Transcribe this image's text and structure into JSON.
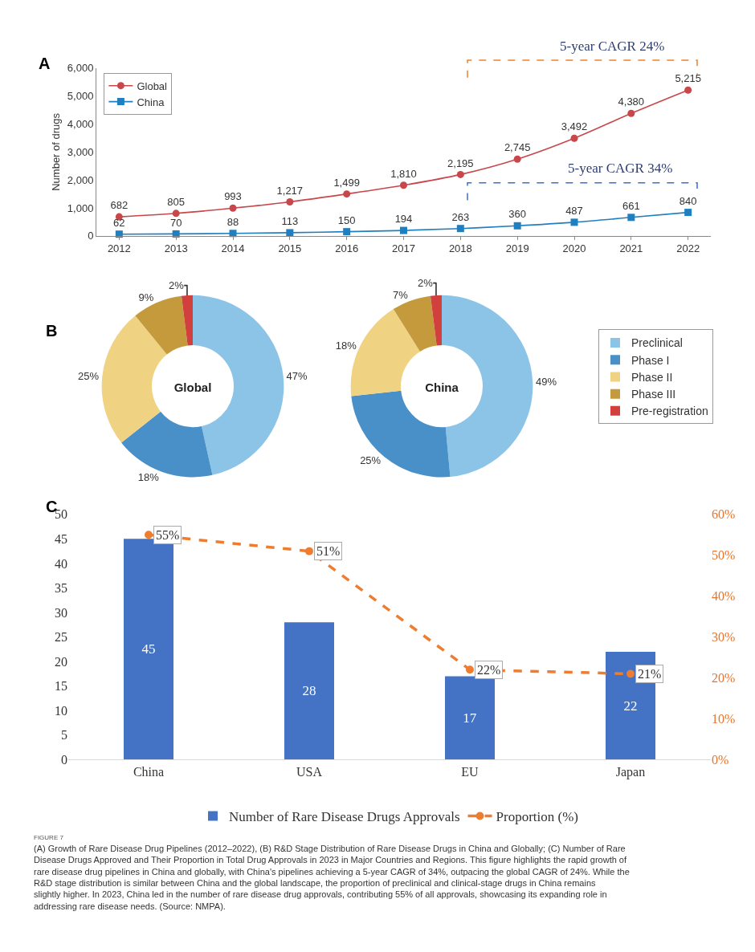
{
  "chart_data": [
    {
      "type": "line",
      "ylabel": "Number of drugs",
      "annotations": [
        "A",
        "5-year CAGR 24%",
        "5-year CAGR 34%"
      ],
      "categories": [
        "2012",
        "2013",
        "2014",
        "2015",
        "2016",
        "2017",
        "2018",
        "2019",
        "2020",
        "2021",
        "2022"
      ],
      "series": [
        {
          "name": "Global",
          "color": "#c8474a",
          "marker": "circle",
          "values": [
            682,
            805,
            993,
            1217,
            1499,
            1810,
            2195,
            2745,
            3492,
            4380,
            5215
          ],
          "value_labels": [
            "682",
            "805",
            "993",
            "1,217",
            "1,499",
            "1,810",
            "2,195",
            "2,745",
            "3,492",
            "4,380",
            "5,215"
          ]
        },
        {
          "name": "China",
          "color": "#1f7fbf",
          "marker": "square",
          "values": [
            62,
            70,
            88,
            113,
            150,
            194,
            263,
            360,
            487,
            661,
            840
          ],
          "value_labels": [
            "62",
            "70",
            "88",
            "113",
            "150",
            "194",
            "263",
            "360",
            "487",
            "661",
            "840"
          ]
        }
      ],
      "ylim": [
        0,
        6000
      ],
      "yticks": [
        0,
        {
          "value": 1000,
          "label": "1,000"
        },
        {
          "value": 2000,
          "label": "2,000"
        },
        {
          "value": 3000,
          "label": "3,000"
        },
        {
          "value": 4000,
          "label": "4,000"
        },
        {
          "value": 5000,
          "label": "5,000"
        },
        {
          "value": 6000,
          "label": "6,000"
        }
      ],
      "legend": "top left",
      "line_style": "solid"
    },
    {
      "type": "donut",
      "title": "Global",
      "annotations": [
        "B"
      ],
      "categories": [
        "Preclinical",
        "Phase I",
        "Phase II",
        "Phase III",
        "Pre-registration"
      ],
      "values": [
        47,
        18,
        25,
        9,
        2
      ],
      "value_labels": [
        "47%",
        "18%",
        "25%",
        "9%",
        "2%"
      ],
      "colors": [
        "#8cc4e8",
        "#4a90c8",
        "#f0d283",
        "#c49a3c",
        "#d2403e"
      ],
      "legend": "right"
    },
    {
      "type": "donut",
      "title": "China",
      "categories": [
        null,
        null,
        null,
        null,
        null
      ],
      "values": [
        49,
        25,
        18,
        7,
        2
      ],
      "value_labels": [
        "49%",
        "25%",
        "18%",
        "7%",
        "2%"
      ],
      "colors": [
        "#8cc4e8",
        "#4a90c8",
        "#f0d283",
        "#c49a3c",
        "#d2403e"
      ]
    },
    {
      "type": "bar",
      "annotations": [
        "C",
        "FIGURE 7",
        "(A) Growth of Rare Disease Drug Pipelines (2012–2022), (B) R&D Stage Distribution of Rare Disease Drugs in China and Globally; (C) Number of Rare Disease Drugs Approved and Their Proportion in Total Drug Approvals in 2023 in Major Countries and Regions. This figure highlights the rapid growth of rare disease drug pipelines in China and globally, with China's pipelines achieving a 5-year CAGR of 34%, outpacing the global CAGR of 24%. While the R&D stage distribution is similar between China and the global landscape, the proportion of preclinical and clinical-stage drugs in China remains slightly higher. In 2023, China led in the number of rare disease drug approvals, contributing 55% of all approvals, showcasing its expanding role in addressing rare disease needs. (Source: NMPA)."
      ],
      "categories": [
        "China",
        "USA",
        "EU",
        "Japan"
      ],
      "series": [
        {
          "name": "Number of Rare Disease Drugs Approvals",
          "type": "bar",
          "color": "#4472c4",
          "values": [
            45,
            28,
            17,
            22
          ],
          "value_labels": [
            "45",
            "28",
            "17",
            "22"
          ]
        },
        {
          "name": "Proportion (%)",
          "type": "line",
          "axis": "y2",
          "color": "#ed7d31",
          "marker": "circle",
          "line_style": "dashed",
          "values": [
            55,
            51,
            22,
            21
          ],
          "value_labels": [
            "55%",
            "51%",
            "22%",
            "21%"
          ]
        }
      ],
      "ylim": [
        0,
        50
      ],
      "yticks": [
        0,
        5,
        10,
        15,
        20,
        25,
        30,
        35,
        40,
        45,
        50
      ],
      "y2lim": [
        0,
        60
      ],
      "y2ticks": [
        {
          "value": 0,
          "label": "0%"
        },
        {
          "value": 10,
          "label": "10%"
        },
        {
          "value": 20,
          "label": "20%"
        },
        {
          "value": 30,
          "label": "30%"
        },
        {
          "value": 40,
          "label": "40%"
        },
        {
          "value": 50,
          "label": "50%"
        },
        {
          "value": 60,
          "label": "60%"
        }
      ],
      "legend": "bottom"
    }
  ]
}
